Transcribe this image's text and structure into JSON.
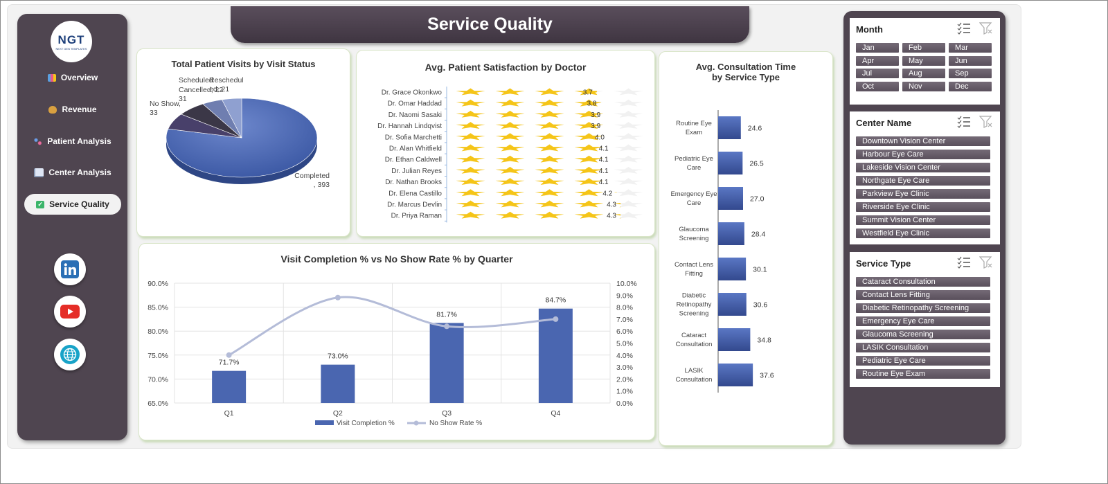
{
  "header": {
    "title": "Service Quality"
  },
  "logo": {
    "text": "NGT",
    "subtext": "NEXT GEN TEMPLATES"
  },
  "nav": {
    "items": [
      {
        "label": "Overview",
        "icon": "bar-chart-icon"
      },
      {
        "label": "Revenue",
        "icon": "money-bag-icon"
      },
      {
        "label": "Patient Analysis",
        "icon": "scatter-icon"
      },
      {
        "label": "Center Analysis",
        "icon": "line-chart-icon"
      },
      {
        "label": "Service Quality",
        "icon": "checkmark-icon"
      }
    ],
    "active": "Service Quality",
    "social": [
      "linkedin-icon",
      "youtube-icon",
      "globe-icon"
    ]
  },
  "charts": {
    "pie": {
      "title": "Total Patient Visits by Visit Status"
    },
    "stars": {
      "title": "Avg. Patient Satisfaction by Doctor"
    },
    "hbar": {
      "title": "Avg. Consultation Time by Service Type"
    },
    "combo": {
      "title": "Visit Completion % vs No Show Rate % by Quarter"
    }
  },
  "chart_data": [
    {
      "type": "pie",
      "title": "Total Patient Visits by Visit Status",
      "slices": [
        {
          "label": "Completed",
          "value": 393
        },
        {
          "label": "No Show",
          "value": 33
        },
        {
          "label": "Cancelled",
          "value": 31
        },
        {
          "label": "Scheduled",
          "value": 22
        },
        {
          "label": "Rescheduled",
          "value": 21
        }
      ],
      "label_text": [
        {
          "name": "Completed",
          "value": ", 393"
        },
        {
          "name": "No Show,",
          "value": "33"
        },
        {
          "name": "Cancelled, 22",
          "value": "31"
        },
        {
          "name": "Scheduled",
          "value": ""
        },
        {
          "name": "Reschedul",
          "value": "ed, 21"
        }
      ]
    },
    {
      "type": "bar",
      "orientation": "horizontal",
      "title": "Avg. Patient Satisfaction by Doctor",
      "marker": "star",
      "max_value": 5,
      "categories": [
        "Dr. Grace Okonkwo",
        "Dr. Omar Haddad",
        "Dr. Naomi Sasaki",
        "Dr. Hannah Lindqvist",
        "Dr. Sofia Marchetti",
        "Dr. Alan Whitfield",
        "Dr. Ethan Caldwell",
        "Dr. Julian Reyes",
        "Dr. Nathan Brooks",
        "Dr. Elena Castillo",
        "Dr. Marcus Devlin",
        "Dr. Priya Raman"
      ],
      "values": [
        3.7,
        3.8,
        3.9,
        3.9,
        4.0,
        4.1,
        4.1,
        4.1,
        4.1,
        4.2,
        4.3,
        4.3
      ],
      "value_labels": [
        "3.7",
        "3.8",
        "3.9",
        "3.9",
        "4.0",
        "4.1",
        "4.1",
        "4.1",
        "4.1",
        "4.2",
        "4.3",
        "4.3"
      ]
    },
    {
      "type": "bar",
      "orientation": "horizontal",
      "title": "Avg. Consultation Time by Service Type",
      "categories": [
        "Routine Eye Exam",
        "Pediatric Eye Care",
        "Emergency Eye Care",
        "Glaucoma Screening",
        "Contact Lens Fitting",
        "Diabetic Retinopathy Screening",
        "Cataract Consultation",
        "LASIK Consultation"
      ],
      "category_lines": [
        [
          "Routine Eye",
          "Exam"
        ],
        [
          "Pediatric Eye",
          "Care"
        ],
        [
          "Emergency Eye",
          "Care"
        ],
        [
          "Glaucoma",
          "Screening"
        ],
        [
          "Contact Lens",
          "Fitting"
        ],
        [
          "Diabetic",
          "Retinopathy",
          "Screening"
        ],
        [
          "Cataract",
          "Consultation"
        ],
        [
          "LASIK",
          "Consultation"
        ]
      ],
      "values": [
        24.6,
        26.5,
        27.0,
        28.4,
        30.1,
        30.6,
        34.8,
        37.6
      ],
      "value_labels": [
        "24.6",
        "26.5",
        "27.0",
        "28.4",
        "30.1",
        "30.6",
        "34.8",
        "37.6"
      ],
      "xlim": [
        0,
        60
      ],
      "color": "#4a66b0"
    },
    {
      "type": "bar+line",
      "title": "Visit Completion % vs No Show Rate % by Quarter",
      "categories": [
        "Q1",
        "Q2",
        "Q3",
        "Q4"
      ],
      "series": [
        {
          "name": "Visit Completion %",
          "type": "bar",
          "axis": "left",
          "values": [
            71.7,
            73.0,
            81.7,
            84.7
          ],
          "value_labels": [
            "71.7%",
            "73.0%",
            "81.7%",
            "84.7%"
          ],
          "color": "#4a66b0"
        },
        {
          "name": "No Show Rate %",
          "type": "line",
          "axis": "right",
          "values": [
            4.0,
            8.8,
            6.4,
            7.0
          ],
          "color": "#b4bcd8"
        }
      ],
      "y_left": {
        "min": 65,
        "max": 90,
        "ticks": [
          "65.0%",
          "70.0%",
          "75.0%",
          "80.0%",
          "85.0%",
          "90.0%"
        ]
      },
      "y_right": {
        "min": 0,
        "max": 10,
        "ticks": [
          "0.0%",
          "1.0%",
          "2.0%",
          "3.0%",
          "4.0%",
          "5.0%",
          "6.0%",
          "7.0%",
          "8.0%",
          "9.0%",
          "10.0%"
        ]
      },
      "grid": true,
      "legend": "bottom"
    }
  ],
  "slicers": [
    {
      "title": "Month",
      "items": [
        "Jan",
        "Feb",
        "Mar",
        "Apr",
        "May",
        "Jun",
        "Jul",
        "Aug",
        "Sep",
        "Oct",
        "Nov",
        "Dec"
      ]
    },
    {
      "title": "Center Name",
      "items": [
        "Downtown Vision Center",
        "Harbour Eye Care",
        "Lakeside Vision Center",
        "Northgate Eye Care",
        "Parkview Eye Clinic",
        "Riverside Eye Clinic",
        "Summit Vision Center",
        "Westfield Eye Clinic"
      ]
    },
    {
      "title": "Service Type",
      "items": [
        "Cataract Consultation",
        "Contact Lens Fitting",
        "Diabetic Retinopathy Screening",
        "Emergency Eye Care",
        "Glaucoma Screening",
        "LASIK Consultation",
        "Pediatric Eye Care",
        "Routine Eye Exam"
      ]
    }
  ],
  "slicer_icons": [
    "multi-select-icon",
    "clear-filter-icon"
  ],
  "colors": {
    "panel": "#4f4550",
    "accent": "#4a66b0",
    "line": "#b4bcd8",
    "star": "#f5c518"
  }
}
